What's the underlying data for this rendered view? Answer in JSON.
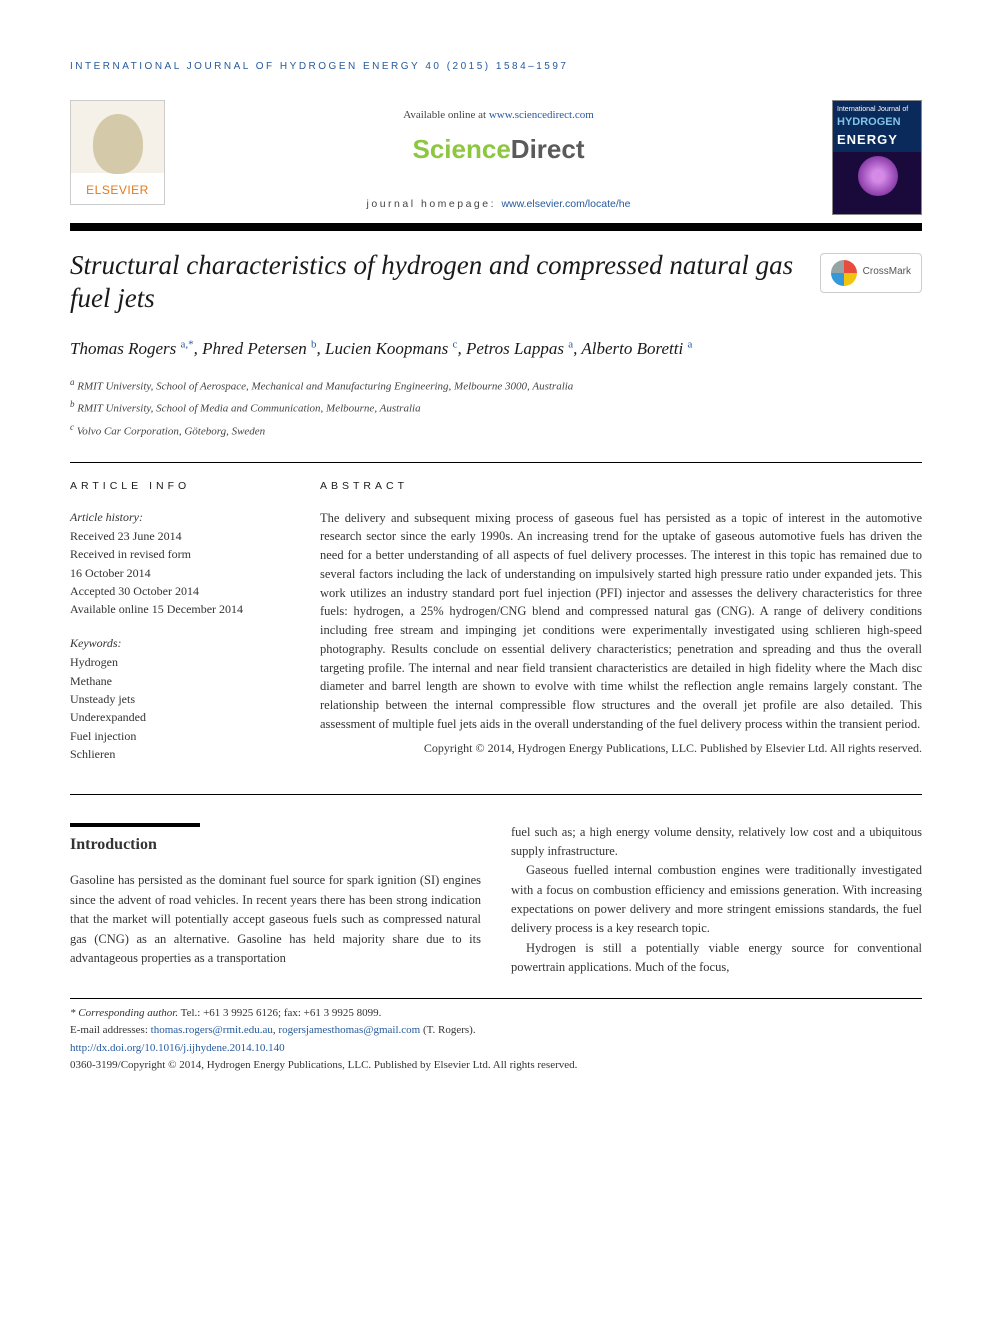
{
  "running_header": "INTERNATIONAL JOURNAL OF HYDROGEN ENERGY 40 (2015) 1584–1597",
  "masthead": {
    "publisher_name": "ELSEVIER",
    "available_prefix": "Available online at ",
    "available_link": "www.sciencedirect.com",
    "sd_part1": "Science",
    "sd_part2": "Direct",
    "homepage_prefix": "journal homepage: ",
    "homepage_link": "www.elsevier.com/locate/he",
    "journal_cover": {
      "line1": "International Journal of",
      "line2": "HYDROGEN",
      "line3": "ENERGY"
    }
  },
  "crossmark_label": "CrossMark",
  "title": "Structural characteristics of hydrogen and compressed natural gas fuel jets",
  "authors_html": "Thomas Rogers <sup>a,*</sup>, Phred Petersen <sup>b</sup>, Lucien Koopmans <sup>c</sup>, Petros Lappas <sup>a</sup>, Alberto Boretti <sup>a</sup>",
  "affiliations": [
    {
      "sup": "a",
      "text": "RMIT University, School of Aerospace, Mechanical and Manufacturing Engineering, Melbourne 3000, Australia"
    },
    {
      "sup": "b",
      "text": "RMIT University, School of Media and Communication, Melbourne, Australia"
    },
    {
      "sup": "c",
      "text": "Volvo Car Corporation, Göteborg, Sweden"
    }
  ],
  "article_info": {
    "label": "ARTICLE INFO",
    "history_head": "Article history:",
    "history": [
      "Received 23 June 2014",
      "Received in revised form",
      "16 October 2014",
      "Accepted 30 October 2014",
      "Available online 15 December 2014"
    ],
    "keywords_head": "Keywords:",
    "keywords": [
      "Hydrogen",
      "Methane",
      "Unsteady jets",
      "Underexpanded",
      "Fuel injection",
      "Schlieren"
    ]
  },
  "abstract": {
    "label": "ABSTRACT",
    "text": "The delivery and subsequent mixing process of gaseous fuel has persisted as a topic of interest in the automotive research sector since the early 1990s. An increasing trend for the uptake of gaseous automotive fuels has driven the need for a better understanding of all aspects of fuel delivery processes. The interest in this topic has remained due to several factors including the lack of understanding on impulsively started high pressure ratio under expanded jets. This work utilizes an industry standard port fuel injection (PFI) injector and assesses the delivery characteristics for three fuels: hydrogen, a 25% hydrogen/CNG blend and compressed natural gas (CNG). A range of delivery conditions including free stream and impinging jet conditions were experimentally investigated using schlieren high-speed photography. Results conclude on essential delivery characteristics; penetration and spreading and thus the overall targeting profile. The internal and near field transient characteristics are detailed in high fidelity where the Mach disc diameter and barrel length are shown to evolve with time whilst the reflection angle remains largely constant. The relationship between the internal compressible flow structures and the overall jet profile are also detailed. This assessment of multiple fuel jets aids in the overall understanding of the fuel delivery process within the transient period.",
    "copyright": "Copyright © 2014, Hydrogen Energy Publications, LLC. Published by Elsevier Ltd. All rights reserved."
  },
  "intro": {
    "heading": "Introduction",
    "col1_p1": "Gasoline has persisted as the dominant fuel source for spark ignition (SI) engines since the advent of road vehicles. In recent years there has been strong indication that the market will potentially accept gaseous fuels such as compressed natural gas (CNG) as an alternative. Gasoline has held majority share due to its advantageous properties as a transportation",
    "col2_p1": "fuel such as; a high energy volume density, relatively low cost and a ubiquitous supply infrastructure.",
    "col2_p2": "Gaseous fuelled internal combustion engines were traditionally investigated with a focus on combustion efficiency and emissions generation. With increasing expectations on power delivery and more stringent emissions standards, the fuel delivery process is a key research topic.",
    "col2_p3": "Hydrogen is still a potentially viable energy source for conventional powertrain applications. Much of the focus,"
  },
  "footnotes": {
    "corr_label": "* Corresponding author.",
    "corr_text": " Tel.: +61 3 9925 6126; fax: +61 3 9925 8099.",
    "email_label": "E-mail addresses: ",
    "email1": "thomas.rogers@rmit.edu.au",
    "email_sep": ", ",
    "email2": "rogersjamesthomas@gmail.com",
    "email_suffix": " (T. Rogers).",
    "doi": "http://dx.doi.org/10.1016/j.ijhydene.2014.10.140",
    "issn_copyright": "0360-3199/Copyright © 2014, Hydrogen Energy Publications, LLC. Published by Elsevier Ltd. All rights reserved."
  },
  "colors": {
    "link": "#265a9e",
    "sd_green": "#8dc63f",
    "sd_grey": "#5a5a5a",
    "elsevier_orange": "#e67817",
    "text": "#333333",
    "black": "#000000"
  }
}
